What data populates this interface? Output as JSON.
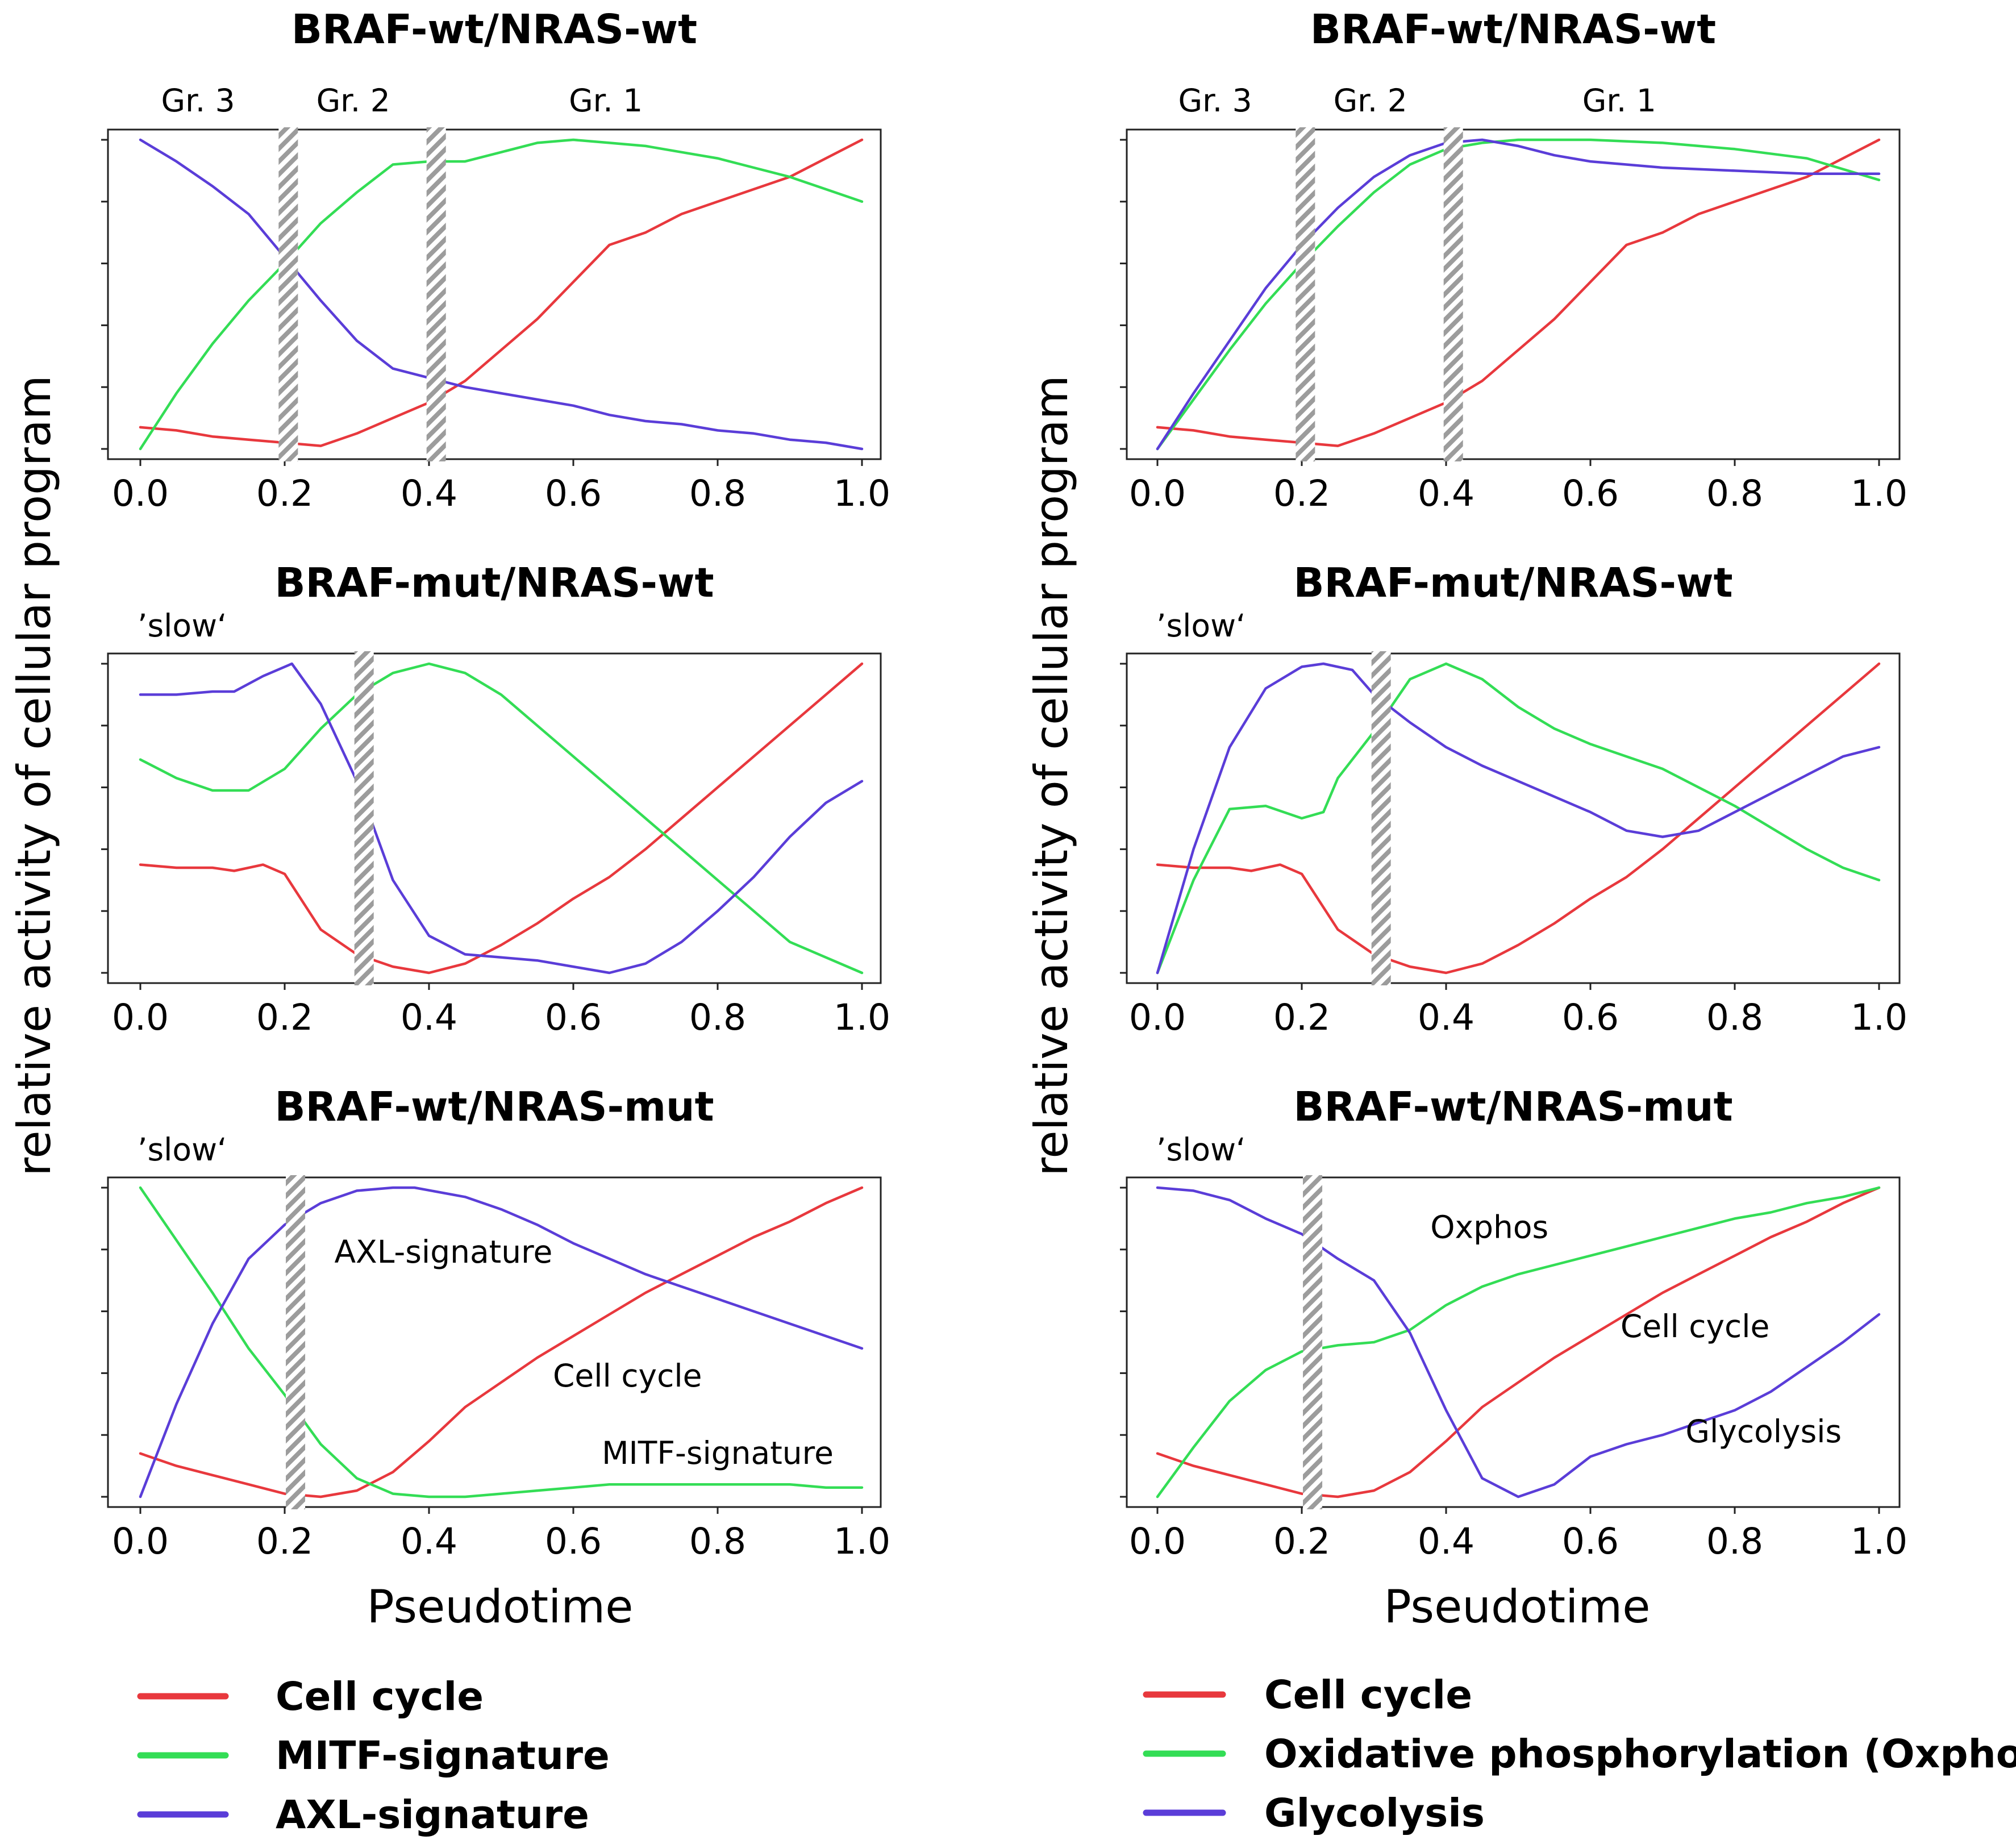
{
  "figure": {
    "ylabel": "relative activity of cellular program",
    "xlabel": "Pseudotime",
    "xticks": [
      "0.0",
      "0.2",
      "0.4",
      "0.6",
      "0.8",
      "1.0"
    ],
    "colors": {
      "red": "#e8383d",
      "green": "#33dd55",
      "blue": "#5a3dd8",
      "hatch": "#9c9c9c"
    }
  },
  "legends": {
    "left": [
      {
        "label": "Cell cycle",
        "color": "#e8383d"
      },
      {
        "label": "MITF-signature",
        "color": "#33dd55"
      },
      {
        "label": "AXL-signature",
        "color": "#5a3dd8"
      }
    ],
    "right": [
      {
        "label": "Cell cycle",
        "color": "#e8383d"
      },
      {
        "label": "Oxidative phosphorylation (Oxphos)",
        "color": "#33dd55"
      },
      {
        "label": "Glycolysis",
        "color": "#5a3dd8"
      }
    ]
  },
  "chart_data": [
    {
      "type": "line",
      "title": "BRAF-wt/NRAS-wt",
      "xlabel": "",
      "ylabel": "relative activity of cellular program",
      "xlim": [
        0,
        1
      ],
      "ylim": [
        0,
        1
      ],
      "groups": [
        {
          "label": "Gr. 3",
          "x": 0.08
        },
        {
          "label": "Gr. 2",
          "x": 0.295
        },
        {
          "label": "Gr. 1",
          "x": 0.645
        }
      ],
      "corner_note": "",
      "separators": [
        0.205,
        0.41
      ],
      "series": [
        {
          "name": "Cell cycle",
          "color": "#e8383d",
          "x": [
            0,
            0.05,
            0.1,
            0.15,
            0.2,
            0.25,
            0.3,
            0.35,
            0.4,
            0.45,
            0.5,
            0.55,
            0.6,
            0.65,
            0.7,
            0.75,
            0.8,
            0.85,
            0.9,
            0.95,
            1.0
          ],
          "y": [
            0.07,
            0.06,
            0.04,
            0.03,
            0.02,
            0.01,
            0.05,
            0.1,
            0.15,
            0.22,
            0.32,
            0.42,
            0.54,
            0.66,
            0.7,
            0.76,
            0.8,
            0.84,
            0.88,
            0.94,
            1.0
          ]
        },
        {
          "name": "MITF-signature",
          "color": "#33dd55",
          "x": [
            0,
            0.05,
            0.1,
            0.15,
            0.2,
            0.25,
            0.3,
            0.35,
            0.4,
            0.45,
            0.5,
            0.55,
            0.6,
            0.65,
            0.7,
            0.75,
            0.8,
            0.85,
            0.9,
            0.95,
            1.0
          ],
          "y": [
            0.0,
            0.18,
            0.34,
            0.48,
            0.6,
            0.73,
            0.83,
            0.92,
            0.93,
            0.93,
            0.96,
            0.99,
            1.0,
            0.99,
            0.98,
            0.96,
            0.94,
            0.91,
            0.88,
            0.84,
            0.8
          ]
        },
        {
          "name": "AXL-signature",
          "color": "#5a3dd8",
          "x": [
            0,
            0.05,
            0.1,
            0.15,
            0.2,
            0.25,
            0.3,
            0.35,
            0.4,
            0.45,
            0.5,
            0.55,
            0.6,
            0.65,
            0.7,
            0.75,
            0.8,
            0.85,
            0.9,
            0.95,
            1.0
          ],
          "y": [
            1.0,
            0.93,
            0.85,
            0.76,
            0.62,
            0.48,
            0.35,
            0.26,
            0.23,
            0.2,
            0.18,
            0.16,
            0.14,
            0.11,
            0.09,
            0.08,
            0.06,
            0.05,
            0.03,
            0.02,
            0.0
          ]
        }
      ]
    },
    {
      "type": "line",
      "title": "BRAF-wt/NRAS-wt",
      "xlabel": "",
      "ylabel": "relative activity of cellular program",
      "xlim": [
        0,
        1
      ],
      "ylim": [
        0,
        1
      ],
      "groups": [
        {
          "label": "Gr. 3",
          "x": 0.08
        },
        {
          "label": "Gr. 2",
          "x": 0.295
        },
        {
          "label": "Gr. 1",
          "x": 0.64
        }
      ],
      "corner_note": "",
      "separators": [
        0.205,
        0.41
      ],
      "series": [
        {
          "name": "Cell cycle",
          "color": "#e8383d",
          "x": [
            0,
            0.05,
            0.1,
            0.15,
            0.2,
            0.25,
            0.3,
            0.35,
            0.4,
            0.45,
            0.5,
            0.55,
            0.6,
            0.65,
            0.7,
            0.75,
            0.8,
            0.85,
            0.9,
            0.95,
            1.0
          ],
          "y": [
            0.07,
            0.06,
            0.04,
            0.03,
            0.02,
            0.01,
            0.05,
            0.1,
            0.15,
            0.22,
            0.32,
            0.42,
            0.54,
            0.66,
            0.7,
            0.76,
            0.8,
            0.84,
            0.88,
            0.94,
            1.0
          ]
        },
        {
          "name": "Oxidative phosphorylation (Oxphos)",
          "color": "#33dd55",
          "x": [
            0,
            0.05,
            0.1,
            0.15,
            0.2,
            0.25,
            0.3,
            0.35,
            0.4,
            0.45,
            0.5,
            0.6,
            0.7,
            0.8,
            0.9,
            1.0
          ],
          "y": [
            0.0,
            0.16,
            0.32,
            0.47,
            0.6,
            0.72,
            0.83,
            0.92,
            0.97,
            0.99,
            1.0,
            1.0,
            0.99,
            0.97,
            0.94,
            0.87
          ]
        },
        {
          "name": "Glycolysis",
          "color": "#5a3dd8",
          "x": [
            0,
            0.05,
            0.1,
            0.15,
            0.2,
            0.25,
            0.3,
            0.35,
            0.4,
            0.45,
            0.5,
            0.55,
            0.6,
            0.7,
            0.8,
            0.9,
            1.0
          ],
          "y": [
            0.0,
            0.18,
            0.35,
            0.52,
            0.66,
            0.78,
            0.88,
            0.95,
            0.99,
            1.0,
            0.98,
            0.95,
            0.93,
            0.91,
            0.9,
            0.89,
            0.89
          ]
        }
      ]
    },
    {
      "type": "line",
      "title": "BRAF-mut/NRAS-wt",
      "xlabel": "",
      "ylabel": "relative activity of cellular program",
      "xlim": [
        0,
        1
      ],
      "ylim": [
        0,
        1
      ],
      "groups": [],
      "corner_note": "’slow‘",
      "separators": [
        0.31
      ],
      "series": [
        {
          "name": "Cell cycle",
          "color": "#e8383d",
          "x": [
            0,
            0.05,
            0.1,
            0.13,
            0.17,
            0.2,
            0.25,
            0.3,
            0.35,
            0.4,
            0.45,
            0.5,
            0.55,
            0.6,
            0.65,
            0.7,
            0.75,
            0.8,
            0.85,
            0.9,
            0.95,
            1.0
          ],
          "y": [
            0.35,
            0.34,
            0.34,
            0.33,
            0.35,
            0.32,
            0.14,
            0.06,
            0.02,
            0.0,
            0.03,
            0.09,
            0.16,
            0.24,
            0.31,
            0.4,
            0.5,
            0.6,
            0.7,
            0.8,
            0.9,
            1.0
          ]
        },
        {
          "name": "MITF-signature",
          "color": "#33dd55",
          "x": [
            0,
            0.05,
            0.1,
            0.15,
            0.2,
            0.25,
            0.3,
            0.35,
            0.4,
            0.45,
            0.5,
            0.55,
            0.6,
            0.65,
            0.7,
            0.75,
            0.8,
            0.85,
            0.9,
            0.95,
            1.0
          ],
          "y": [
            0.69,
            0.63,
            0.59,
            0.59,
            0.66,
            0.79,
            0.9,
            0.97,
            1.0,
            0.97,
            0.9,
            0.8,
            0.7,
            0.6,
            0.5,
            0.4,
            0.3,
            0.2,
            0.1,
            0.05,
            0.0
          ]
        },
        {
          "name": "AXL-signature",
          "color": "#5a3dd8",
          "x": [
            0,
            0.05,
            0.1,
            0.13,
            0.17,
            0.21,
            0.25,
            0.3,
            0.35,
            0.4,
            0.45,
            0.5,
            0.55,
            0.6,
            0.65,
            0.7,
            0.75,
            0.8,
            0.85,
            0.9,
            0.95,
            1.0
          ],
          "y": [
            0.9,
            0.9,
            0.91,
            0.91,
            0.96,
            1.0,
            0.87,
            0.62,
            0.3,
            0.12,
            0.06,
            0.05,
            0.04,
            0.02,
            0.0,
            0.03,
            0.1,
            0.2,
            0.31,
            0.44,
            0.55,
            0.62
          ]
        }
      ]
    },
    {
      "type": "line",
      "title": "BRAF-mut/NRAS-wt",
      "xlabel": "",
      "ylabel": "relative activity of cellular program",
      "xlim": [
        0,
        1
      ],
      "ylim": [
        0,
        1
      ],
      "groups": [],
      "corner_note": "’slow‘",
      "separators": [
        0.31
      ],
      "series": [
        {
          "name": "Cell cycle",
          "color": "#e8383d",
          "x": [
            0,
            0.05,
            0.1,
            0.13,
            0.17,
            0.2,
            0.25,
            0.3,
            0.35,
            0.4,
            0.45,
            0.5,
            0.55,
            0.6,
            0.65,
            0.7,
            0.75,
            0.8,
            0.85,
            0.9,
            0.95,
            1.0
          ],
          "y": [
            0.35,
            0.34,
            0.34,
            0.33,
            0.35,
            0.32,
            0.14,
            0.06,
            0.02,
            0.0,
            0.03,
            0.09,
            0.16,
            0.24,
            0.31,
            0.4,
            0.5,
            0.6,
            0.7,
            0.8,
            0.9,
            1.0
          ]
        },
        {
          "name": "Oxidative phosphorylation (Oxphos)",
          "color": "#33dd55",
          "x": [
            0,
            0.05,
            0.1,
            0.15,
            0.2,
            0.23,
            0.25,
            0.3,
            0.35,
            0.4,
            0.45,
            0.5,
            0.55,
            0.6,
            0.65,
            0.7,
            0.75,
            0.8,
            0.85,
            0.9,
            0.95,
            1.0
          ],
          "y": [
            0.0,
            0.3,
            0.53,
            0.54,
            0.5,
            0.52,
            0.63,
            0.78,
            0.95,
            1.0,
            0.95,
            0.86,
            0.79,
            0.74,
            0.7,
            0.66,
            0.6,
            0.54,
            0.47,
            0.4,
            0.34,
            0.3
          ]
        },
        {
          "name": "Glycolysis",
          "color": "#5a3dd8",
          "x": [
            0,
            0.05,
            0.1,
            0.15,
            0.2,
            0.23,
            0.27,
            0.3,
            0.35,
            0.4,
            0.45,
            0.5,
            0.55,
            0.6,
            0.65,
            0.7,
            0.75,
            0.8,
            0.85,
            0.9,
            0.95,
            1.0
          ],
          "y": [
            0.0,
            0.4,
            0.73,
            0.92,
            0.99,
            1.0,
            0.98,
            0.9,
            0.81,
            0.73,
            0.67,
            0.62,
            0.57,
            0.52,
            0.46,
            0.44,
            0.46,
            0.52,
            0.58,
            0.64,
            0.7,
            0.73
          ]
        }
      ]
    },
    {
      "type": "line",
      "title": "BRAF-wt/NRAS-mut",
      "xlabel": "Pseudotime",
      "ylabel": "relative activity of cellular program",
      "xlim": [
        0,
        1
      ],
      "ylim": [
        0,
        1
      ],
      "groups": [],
      "corner_note": "’slow‘",
      "separators": [
        0.215
      ],
      "annotations": [
        {
          "text": "AXL-signature",
          "x": 0.42,
          "y": 0.79
        },
        {
          "text": "Cell cycle",
          "x": 0.675,
          "y": 0.39
        },
        {
          "text": "MITF-signature",
          "x": 0.8,
          "y": 0.14
        }
      ],
      "series": [
        {
          "name": "Cell cycle",
          "color": "#e8383d",
          "x": [
            0,
            0.05,
            0.1,
            0.15,
            0.2,
            0.25,
            0.3,
            0.35,
            0.4,
            0.45,
            0.5,
            0.55,
            0.6,
            0.65,
            0.7,
            0.75,
            0.8,
            0.85,
            0.9,
            0.95,
            1.0
          ],
          "y": [
            0.14,
            0.1,
            0.07,
            0.04,
            0.01,
            0.0,
            0.02,
            0.08,
            0.18,
            0.29,
            0.37,
            0.45,
            0.52,
            0.59,
            0.66,
            0.72,
            0.78,
            0.84,
            0.89,
            0.95,
            1.0
          ]
        },
        {
          "name": "MITF-signature",
          "color": "#33dd55",
          "x": [
            0,
            0.05,
            0.1,
            0.15,
            0.2,
            0.25,
            0.3,
            0.35,
            0.4,
            0.45,
            0.5,
            0.55,
            0.6,
            0.65,
            0.7,
            0.75,
            0.8,
            0.85,
            0.9,
            0.95,
            1.0
          ],
          "y": [
            1.0,
            0.83,
            0.66,
            0.48,
            0.33,
            0.17,
            0.06,
            0.01,
            0.0,
            0.0,
            0.01,
            0.02,
            0.03,
            0.04,
            0.04,
            0.04,
            0.04,
            0.04,
            0.04,
            0.03,
            0.03
          ]
        },
        {
          "name": "AXL-signature",
          "color": "#5a3dd8",
          "x": [
            0,
            0.05,
            0.1,
            0.15,
            0.2,
            0.25,
            0.3,
            0.35,
            0.38,
            0.45,
            0.5,
            0.55,
            0.6,
            0.65,
            0.7,
            0.75,
            0.8,
            0.85,
            0.9,
            0.95,
            1.0
          ],
          "y": [
            0.0,
            0.3,
            0.56,
            0.77,
            0.88,
            0.95,
            0.99,
            1.0,
            1.0,
            0.97,
            0.93,
            0.88,
            0.82,
            0.77,
            0.72,
            0.68,
            0.64,
            0.6,
            0.56,
            0.52,
            0.48
          ]
        }
      ]
    },
    {
      "type": "line",
      "title": "BRAF-wt/NRAS-mut",
      "xlabel": "Pseudotime",
      "ylabel": "relative activity of cellular program",
      "xlim": [
        0,
        1
      ],
      "ylim": [
        0,
        1
      ],
      "groups": [],
      "corner_note": "’slow‘",
      "separators": [
        0.215
      ],
      "annotations": [
        {
          "text": "Oxphos",
          "x": 0.46,
          "y": 0.87
        },
        {
          "text": "Cell cycle",
          "x": 0.745,
          "y": 0.55
        },
        {
          "text": "Glycolysis",
          "x": 0.84,
          "y": 0.21
        }
      ],
      "series": [
        {
          "name": "Cell cycle",
          "color": "#e8383d",
          "x": [
            0,
            0.05,
            0.1,
            0.15,
            0.2,
            0.25,
            0.3,
            0.35,
            0.4,
            0.45,
            0.5,
            0.55,
            0.6,
            0.65,
            0.7,
            0.75,
            0.8,
            0.85,
            0.9,
            0.95,
            1.0
          ],
          "y": [
            0.14,
            0.1,
            0.07,
            0.04,
            0.01,
            0.0,
            0.02,
            0.08,
            0.18,
            0.29,
            0.37,
            0.45,
            0.52,
            0.59,
            0.66,
            0.72,
            0.78,
            0.84,
            0.89,
            0.95,
            1.0
          ]
        },
        {
          "name": "Oxidative phosphorylation (Oxphos)",
          "color": "#33dd55",
          "x": [
            0,
            0.05,
            0.1,
            0.15,
            0.2,
            0.25,
            0.3,
            0.35,
            0.4,
            0.45,
            0.5,
            0.55,
            0.6,
            0.65,
            0.7,
            0.75,
            0.8,
            0.85,
            0.9,
            0.95,
            1.0
          ],
          "y": [
            0.0,
            0.16,
            0.31,
            0.41,
            0.47,
            0.49,
            0.5,
            0.54,
            0.62,
            0.68,
            0.72,
            0.75,
            0.78,
            0.81,
            0.84,
            0.87,
            0.9,
            0.92,
            0.95,
            0.97,
            1.0
          ]
        },
        {
          "name": "Glycolysis",
          "color": "#5a3dd8",
          "x": [
            0,
            0.05,
            0.1,
            0.15,
            0.2,
            0.25,
            0.3,
            0.35,
            0.4,
            0.45,
            0.5,
            0.55,
            0.6,
            0.65,
            0.7,
            0.75,
            0.8,
            0.85,
            0.9,
            0.95,
            1.0
          ],
          "y": [
            1.0,
            0.99,
            0.96,
            0.9,
            0.85,
            0.77,
            0.7,
            0.53,
            0.28,
            0.06,
            0.0,
            0.04,
            0.13,
            0.17,
            0.2,
            0.24,
            0.28,
            0.34,
            0.42,
            0.5,
            0.59
          ]
        }
      ]
    }
  ]
}
